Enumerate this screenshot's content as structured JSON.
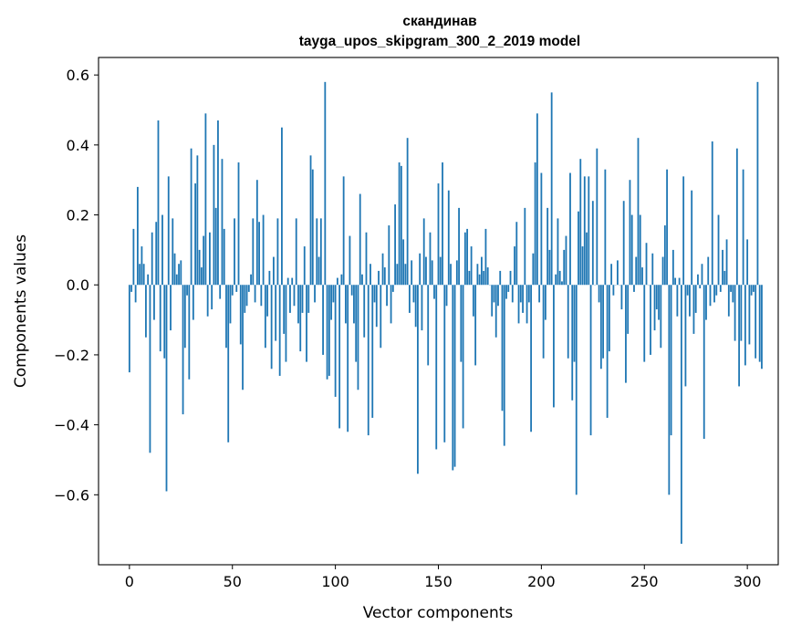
{
  "chart_data": {
    "type": "bar",
    "title": "скандинав",
    "subtitle": "tayga_upos_skipgram_300_2_2019 model",
    "xlabel": "Vector components",
    "ylabel": "Components values",
    "xlim": [
      -15,
      315
    ],
    "ylim": [
      -0.8,
      0.65
    ],
    "xticks": [
      0,
      50,
      100,
      150,
      200,
      250,
      300
    ],
    "yticks": [
      -0.6,
      -0.4,
      -0.2,
      0.0,
      0.2,
      0.4,
      0.6
    ],
    "ytick_labels": [
      "−0.6",
      "−0.4",
      "−0.2",
      "0.0",
      "0.2",
      "0.4",
      "0.6"
    ],
    "bar_color": "#1f77b4",
    "grid": false,
    "values": [
      -0.25,
      -0.02,
      0.16,
      -0.05,
      0.28,
      0.06,
      0.11,
      0.06,
      -0.15,
      0.03,
      -0.48,
      0.15,
      -0.1,
      0.18,
      0.47,
      -0.19,
      0.2,
      -0.21,
      -0.59,
      0.31,
      -0.13,
      0.19,
      0.09,
      0.03,
      0.06,
      0.07,
      -0.37,
      -0.18,
      -0.03,
      -0.27,
      0.39,
      -0.1,
      0.29,
      0.37,
      0.1,
      0.05,
      0.14,
      0.49,
      -0.09,
      0.15,
      -0.07,
      0.4,
      0.22,
      0.47,
      -0.04,
      0.36,
      0.16,
      -0.18,
      -0.45,
      -0.11,
      -0.03,
      0.19,
      -0.02,
      0.35,
      -0.17,
      -0.3,
      -0.08,
      -0.06,
      -0.02,
      0.03,
      0.19,
      -0.05,
      0.3,
      0.18,
      -0.06,
      0.2,
      -0.18,
      -0.09,
      0.04,
      -0.24,
      0.08,
      -0.16,
      0.19,
      -0.26,
      0.45,
      -0.14,
      -0.22,
      0.02,
      -0.08,
      0.02,
      -0.06,
      0.19,
      -0.11,
      -0.19,
      -0.08,
      0.11,
      -0.22,
      -0.08,
      0.37,
      0.33,
      -0.05,
      0.19,
      0.08,
      0.19,
      -0.2,
      0.58,
      -0.27,
      -0.26,
      -0.1,
      -0.05,
      -0.32,
      0.02,
      -0.41,
      0.03,
      0.31,
      -0.11,
      -0.42,
      0.14,
      -0.03,
      -0.11,
      -0.22,
      -0.3,
      0.26,
      0.03,
      -0.15,
      0.15,
      -0.43,
      0.06,
      -0.38,
      -0.05,
      -0.12,
      0.04,
      -0.18,
      0.09,
      0.05,
      -0.06,
      0.17,
      -0.11,
      -0.02,
      0.23,
      0.06,
      0.35,
      0.34,
      0.13,
      0.06,
      0.42,
      -0.08,
      0.07,
      -0.05,
      -0.12,
      -0.54,
      0.09,
      -0.13,
      0.19,
      0.08,
      -0.23,
      0.15,
      0.07,
      -0.04,
      -0.47,
      0.29,
      0.08,
      0.35,
      -0.45,
      -0.06,
      0.27,
      0.06,
      -0.53,
      -0.52,
      0.07,
      0.22,
      -0.22,
      -0.41,
      0.15,
      0.16,
      0.04,
      0.11,
      -0.09,
      -0.23,
      0.06,
      0.03,
      0.08,
      0.04,
      0.16,
      0.05,
      0.0,
      -0.09,
      -0.05,
      -0.15,
      -0.06,
      0.04,
      -0.36,
      -0.46,
      -0.04,
      -0.02,
      0.04,
      -0.05,
      0.11,
      0.18,
      -0.11,
      -0.05,
      -0.08,
      0.22,
      -0.11,
      -0.05,
      -0.42,
      0.09,
      0.35,
      0.49,
      -0.05,
      0.32,
      -0.21,
      -0.1,
      0.22,
      0.1,
      0.55,
      -0.35,
      0.03,
      0.19,
      0.04,
      0.01,
      0.1,
      0.14,
      -0.21,
      0.32,
      -0.33,
      -0.22,
      -0.6,
      0.21,
      0.36,
      0.11,
      0.31,
      0.15,
      0.31,
      -0.43,
      0.24,
      0.0,
      0.39,
      -0.05,
      -0.24,
      -0.21,
      0.33,
      -0.38,
      -0.19,
      0.06,
      -0.03,
      0.0,
      0.07,
      0.0,
      -0.07,
      0.24,
      -0.28,
      -0.14,
      0.3,
      0.2,
      -0.02,
      0.08,
      0.42,
      0.2,
      0.05,
      -0.22,
      0.12,
      0.0,
      -0.2,
      0.09,
      -0.13,
      -0.07,
      -0.1,
      -0.18,
      0.08,
      0.17,
      0.33,
      -0.6,
      -0.43,
      0.1,
      0.02,
      -0.09,
      0.02,
      -0.74,
      0.31,
      -0.29,
      -0.03,
      -0.09,
      0.27,
      -0.14,
      -0.08,
      0.03,
      -0.01,
      0.06,
      -0.44,
      -0.1,
      0.08,
      -0.06,
      0.41,
      -0.05,
      -0.03,
      0.2,
      -0.02,
      0.1,
      0.04,
      0.13,
      -0.09,
      -0.02,
      -0.05,
      -0.16,
      0.39,
      -0.29,
      -0.16,
      0.33,
      -0.23,
      0.13,
      -0.17,
      -0.03,
      -0.02,
      -0.21,
      0.58,
      -0.22,
      -0.24
    ]
  }
}
